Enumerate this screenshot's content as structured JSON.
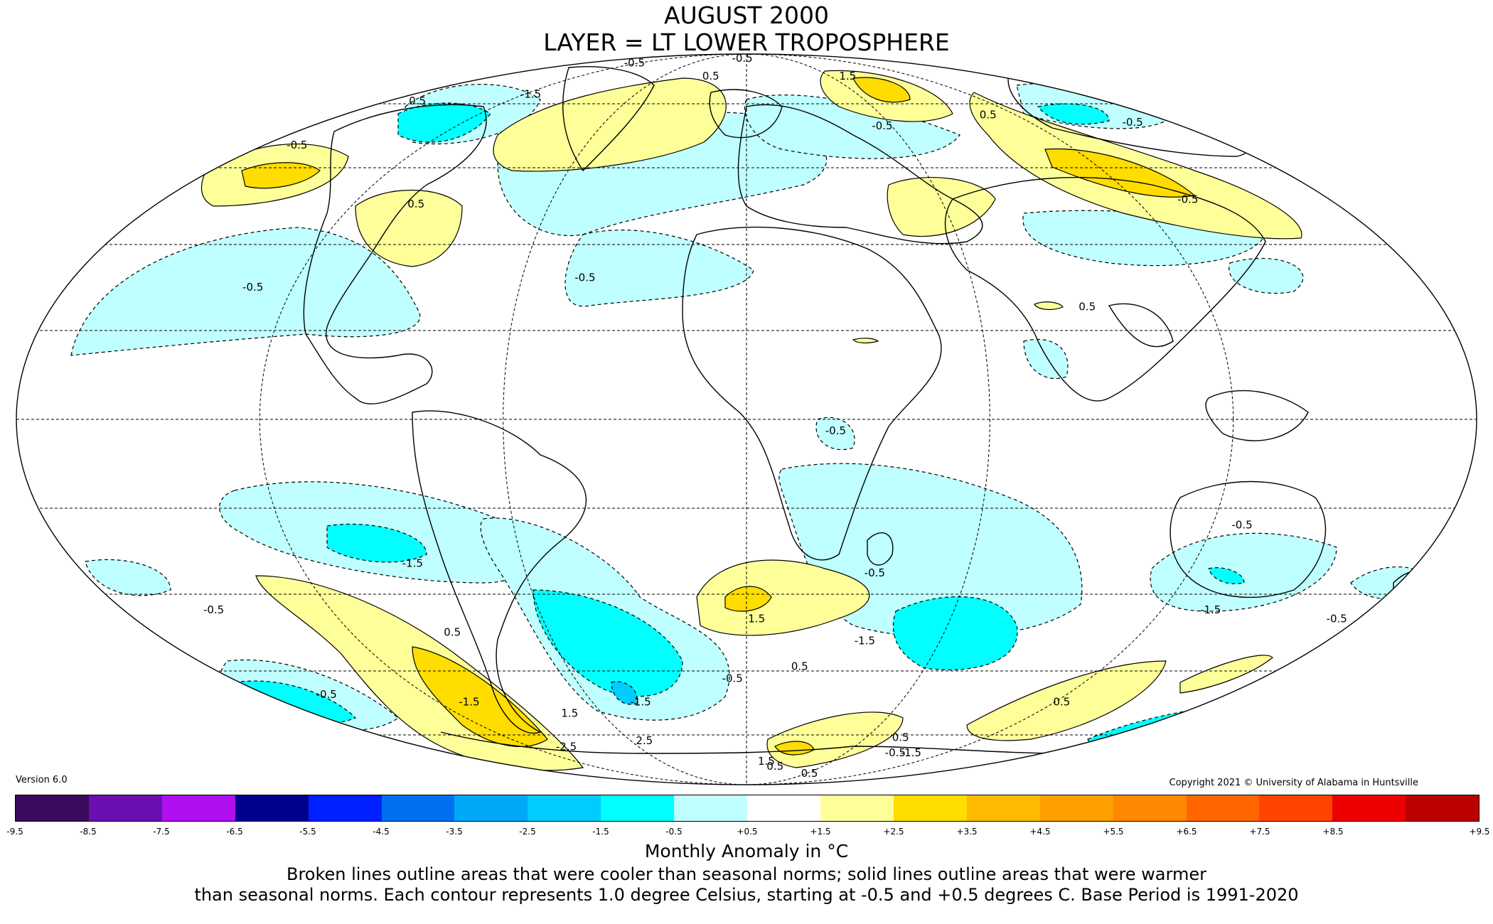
{
  "title": "AUGUST 2000",
  "subtitle": "LAYER = LT LOWER TROPOSPHERE",
  "version": "Version 6.0",
  "copyright": "Copyright 2021 © University of Alabama in Huntsville",
  "colorbar": {
    "ticks": [
      "-9.5",
      "-8.5",
      "-7.5",
      "-6.5",
      "-5.5",
      "-4.5",
      "-3.5",
      "-2.5",
      "-1.5",
      "-0.5",
      "+0.5",
      "+1.5",
      "+2.5",
      "+3.5",
      "+4.5",
      "+5.5",
      "+6.5",
      "+7.5",
      "+8.5",
      "+9.5"
    ],
    "colors": [
      "#3a0a5c",
      "#6a0fb0",
      "#b010f0",
      "#00008f",
      "#0020ff",
      "#0070f0",
      "#00a8f8",
      "#00ccff",
      "#00ffff",
      "#c0ffff",
      "#ffffff",
      "#ffff99",
      "#ffdd00",
      "#ffbb00",
      "#ffa000",
      "#ff8800",
      "#ff6600",
      "#ff4400",
      "#ee0000",
      "#bb0000"
    ]
  },
  "units_label": "Monthly Anomaly in °C",
  "caption_line1": "Broken lines outline areas that were cooler than seasonal norms; solid lines outline areas that were warmer",
  "caption_line2": "than seasonal norms. Each contour represents 1.0 degree Celsius, starting at -0.5 and +0.5 degrees C. Base Period is 1991-2020",
  "contour_labels": [
    {
      "text": "-0.5",
      "lon": -107,
      "lat": 83
    },
    {
      "text": "-0.5",
      "lon": -5,
      "lat": 85
    },
    {
      "text": "0.5",
      "lon": -24,
      "lat": 78
    },
    {
      "text": "-1.5",
      "lon": -112,
      "lat": 72
    },
    {
      "text": "0.5",
      "lon": -160,
      "lat": 70
    },
    {
      "text": "-0.5",
      "lon": -165,
      "lat": 58
    },
    {
      "text": "0.5",
      "lon": -100,
      "lat": 44
    },
    {
      "text": "-0.5",
      "lon": -130,
      "lat": 26
    },
    {
      "text": "-0.5",
      "lon": -43,
      "lat": 28
    },
    {
      "text": "1.5",
      "lon": 68,
      "lat": 78
    },
    {
      "text": "-0.5",
      "lon": 55,
      "lat": 63
    },
    {
      "text": "0.5",
      "lon": 105,
      "lat": 66
    },
    {
      "text": "-0.5",
      "lon": 160,
      "lat": 64
    },
    {
      "text": "-0.5",
      "lon": 135,
      "lat": 45
    },
    {
      "text": "0.5",
      "lon": 88,
      "lat": 22
    },
    {
      "text": "-0.5",
      "lon": 22,
      "lat": -3
    },
    {
      "text": "-1.5",
      "lon": -90,
      "lat": -30
    },
    {
      "text": "-0.5",
      "lon": -155,
      "lat": -40
    },
    {
      "text": "1.5",
      "lon": 3,
      "lat": -42
    },
    {
      "text": "0.5",
      "lon": 18,
      "lat": -53
    },
    {
      "text": "-0.5",
      "lon": -5,
      "lat": -56
    },
    {
      "text": "0.5",
      "lon": -90,
      "lat": -45
    },
    {
      "text": "-0.5",
      "lon": 35,
      "lat": -32
    },
    {
      "text": "-1.5",
      "lon": 37,
      "lat": -47
    },
    {
      "text": "-0.5",
      "lon": 128,
      "lat": -22
    },
    {
      "text": "-1.5",
      "lon": 135,
      "lat": -40
    },
    {
      "text": "-0.5",
      "lon": 175,
      "lat": -42
    },
    {
      "text": "-0.5",
      "lon": -160,
      "lat": -60
    },
    {
      "text": "-1.5",
      "lon": -110,
      "lat": -62
    },
    {
      "text": "1.5",
      "lon": -75,
      "lat": -65
    },
    {
      "text": "-2.5",
      "lon": -105,
      "lat": -75
    },
    {
      "text": "2.5",
      "lon": -55,
      "lat": -73
    },
    {
      "text": "-1.5",
      "lon": -42,
      "lat": -62
    },
    {
      "text": "0.5",
      "lon": 125,
      "lat": -62
    },
    {
      "text": "0.5",
      "lon": 80,
      "lat": -72
    },
    {
      "text": "-0.5",
      "lon": 95,
      "lat": -77
    },
    {
      "text": "-1.5",
      "lon": 105,
      "lat": -77
    },
    {
      "text": "1.5",
      "lon": 15,
      "lat": -80
    },
    {
      "text": "0.5",
      "lon": 25,
      "lat": -82
    },
    {
      "text": "0.5",
      "lon": 75,
      "lat": -85
    }
  ]
}
